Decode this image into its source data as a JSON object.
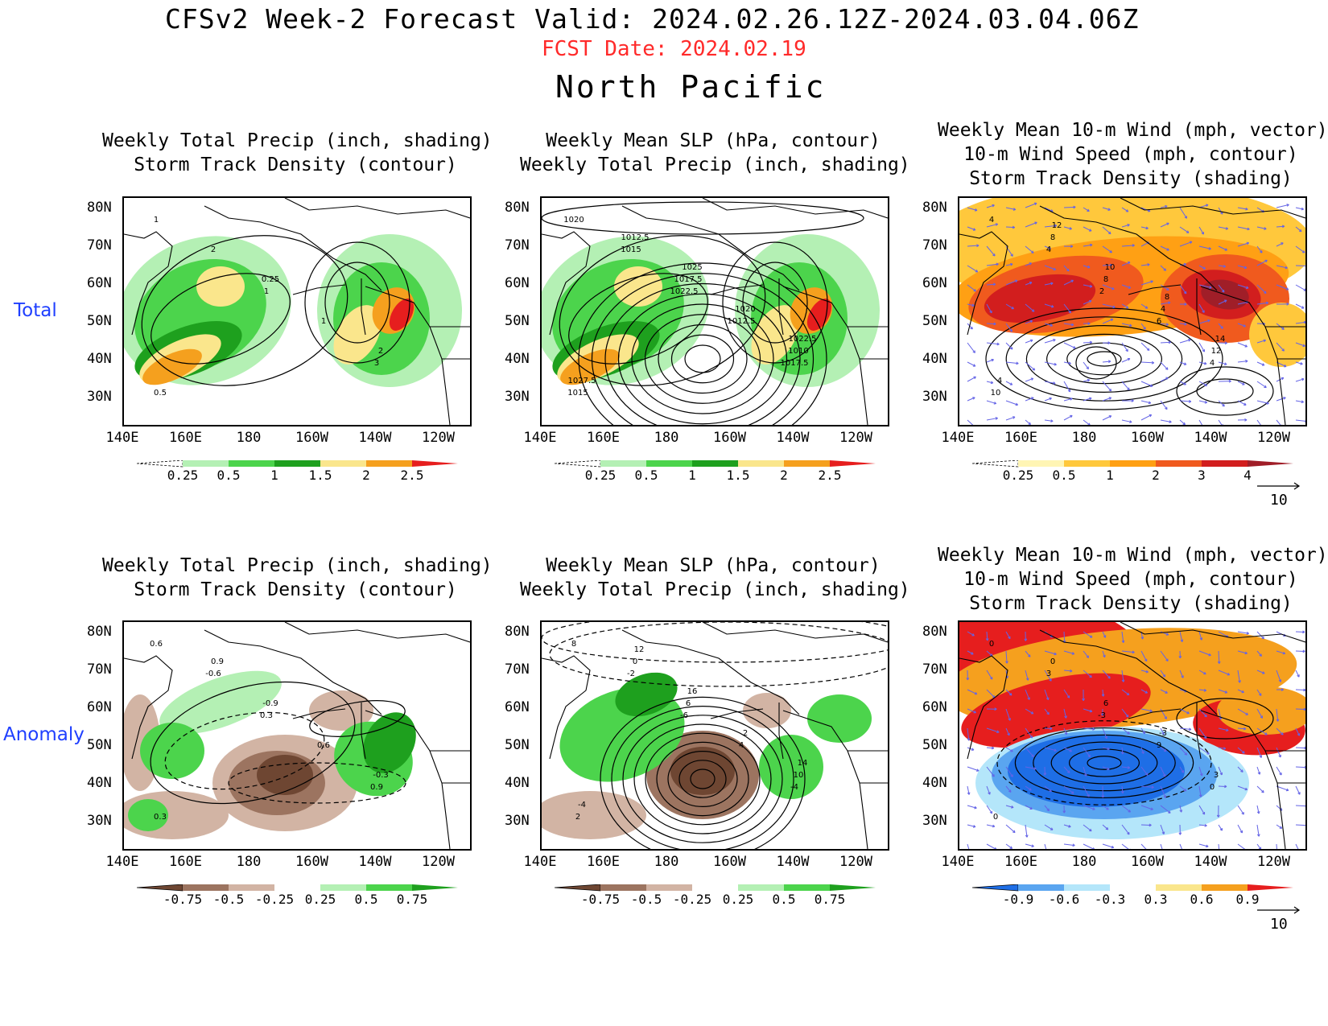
{
  "header": {
    "title": "CFSv2 Week-2 Forecast       Valid: 2024.02.26.12Z-2024.03.04.06Z",
    "fcst_date": "FCST Date: 2024.02.19",
    "region": "North Pacific"
  },
  "rows": {
    "total": "Total",
    "anomaly": "Anomaly"
  },
  "axes": {
    "lat_labels": [
      "80N",
      "70N",
      "60N",
      "50N",
      "40N",
      "30N"
    ],
    "lon_labels": [
      "140E",
      "160E",
      "180",
      "160W",
      "140W",
      "120W"
    ]
  },
  "panels": [
    {
      "id": "total-precip",
      "title1": "Weekly Total Precip (inch, shading)",
      "title2": "Storm Track Density (contour)",
      "contour_labels": [
        "1",
        "1",
        "3",
        "2",
        "1",
        "0.5",
        "0.25",
        "2"
      ]
    },
    {
      "id": "total-slp",
      "title1": "Weekly Mean SLP (hPa, contour)",
      "title2": "Weekly Total Precip (inch, shading)",
      "contour_labels": [
        "1020",
        "1022.5",
        "1017.5",
        "1015",
        "1012.5",
        "1015",
        "1017.5",
        "1010",
        "1012.5",
        "1020",
        "1027.5",
        "1025",
        "1022.5"
      ]
    },
    {
      "id": "total-wind",
      "title0": "Weekly Mean 10-m Wind (mph, vector)",
      "title1": "10-m Wind Speed (mph, contour)",
      "title2": "Storm Track Density (shading)",
      "contour_labels": [
        "4",
        "2",
        "4",
        "4",
        "6",
        "10",
        "8",
        "12",
        "8",
        "4",
        "4",
        "10",
        "14",
        "12",
        "8"
      ]
    },
    {
      "id": "anom-precip",
      "title1": "Weekly Total Precip (inch, shading)",
      "title2": "Storm Track Density (contour)",
      "contour_labels": [
        "0.6",
        "0.3",
        "0.9",
        "-0.6",
        "0.6",
        "0.3",
        "-0.9",
        "-0.3",
        "0.9"
      ]
    },
    {
      "id": "anom-slp",
      "title1": "Weekly Mean SLP (hPa, contour)",
      "title2": "Weekly Total Precip (inch, shading)",
      "contour_labels": [
        "8",
        "-6",
        "-4",
        "-2",
        "4",
        "2",
        "6",
        "10",
        "0",
        "2",
        "-4",
        "16",
        "14",
        "12"
      ]
    },
    {
      "id": "anom-wind",
      "title0": "Weekly Mean 10-m Wind (mph, vector)",
      "title1": "10-m Wind Speed (mph, contour)",
      "title2": "Storm Track Density (shading)",
      "contour_labels": [
        "0",
        "-3",
        "0",
        "3",
        "9",
        "0",
        "6",
        "3",
        "0",
        "-3"
      ]
    }
  ],
  "colorbars": {
    "precip_total": {
      "labels": [
        "0.25",
        "0.5",
        "1",
        "1.5",
        "2",
        "2.5"
      ],
      "colors": [
        "#ffffff",
        "#b4f0b4",
        "#4cd44c",
        "#1ea01e",
        "#fae68c",
        "#f5a01e",
        "#e61e1e"
      ]
    },
    "std_total": {
      "labels": [
        "0.25",
        "0.5",
        "1",
        "2",
        "3",
        "4"
      ],
      "colors": [
        "#ffffff",
        "#fff5b4",
        "#ffc83c",
        "#ffa014",
        "#f05a1e",
        "#d21e1e",
        "#a01e28"
      ]
    },
    "precip_anom": {
      "labels": [
        "-0.75",
        "-0.5",
        "-0.25",
        "0.25",
        "0.5",
        "0.75"
      ],
      "colors": [
        "#6e4632",
        "#9c7460",
        "#d2b4a4",
        "#ffffff",
        "#b4f0b4",
        "#4cd44c",
        "#1ea01e"
      ]
    },
    "std_anom": {
      "labels": [
        "-0.9",
        "-0.6",
        "-0.3",
        "0.3",
        "0.6",
        "0.9"
      ],
      "colors": [
        "#1e6ee6",
        "#5aa5f0",
        "#b4e6fa",
        "#ffffff",
        "#fae68c",
        "#f5a01e",
        "#e61e1e"
      ]
    }
  },
  "vector_ref": {
    "label": "10"
  },
  "colors": {
    "fcst_date": "#ff2a2a",
    "row_label": "#1f3fff",
    "vector": "#6464e6"
  }
}
